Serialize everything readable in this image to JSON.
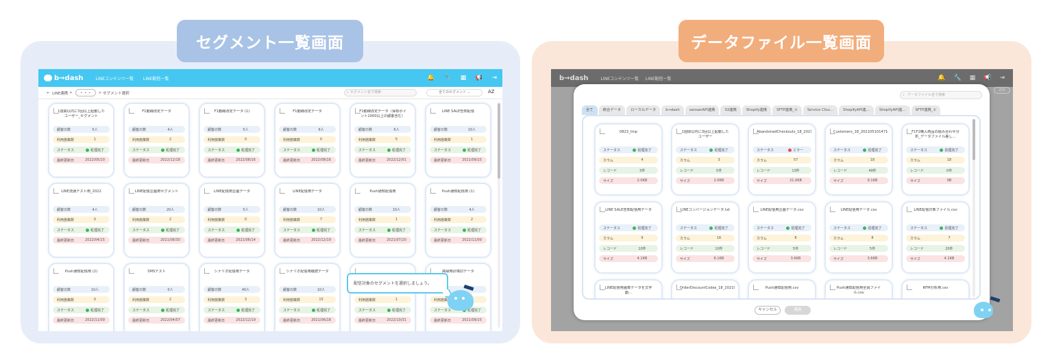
{
  "titles": {
    "left": "セグメント一覧画面",
    "right": "データファイル一覧画面"
  },
  "app": {
    "logo": "b→dash",
    "nav": [
      "LINEコンテンツ一覧",
      "LINE配信一覧"
    ]
  },
  "left": {
    "breadcrumb": {
      "root": "LINE連携",
      "ellipsis": "・・・",
      "current": "セグメント選択"
    },
    "search_placeholder": "セグメント名で検索",
    "filter": "全てのセグメント",
    "sort": "AZ",
    "labels": {
      "count": "顧客の数",
      "usage": "利用施策数",
      "status": "ステータス",
      "updated": "最終更新日"
    },
    "status_done": "処理完了",
    "cards": [
      {
        "name": "1週間以内に3回以上起動したユーザー_セグメント",
        "count": "5人",
        "usage": "1",
        "date": "2022/05/10"
      },
      {
        "name": "F1動線改定データ",
        "count": "4人",
        "usage": "2",
        "date": "2022/12/18"
      },
      {
        "name": "F1動線改定データ (1)",
        "count": "5人",
        "usage": "0",
        "date": "2022/08/16"
      },
      {
        "name": "F1動線改定データ",
        "count": "9人",
        "usage": "0",
        "date": "2022/08/16"
      },
      {
        "name": "F1動線改定データ（保有ポイント1000以上の顧客含む）",
        "count": "6人",
        "usage": "5",
        "date": "2022/12/01"
      },
      {
        "name": "LINE SALE告知配信",
        "count": "10人",
        "usage": "1",
        "date": "2021/09/15"
      },
      {
        "name": "LINE流通テスト用_2022",
        "count": "4人",
        "usage": "0",
        "date": "2022/04/15"
      },
      {
        "name": "LINE配信企画用セグメント",
        "count": "20人",
        "usage": "2",
        "date": "2021/08/30"
      },
      {
        "name": "LINE配信用企画データ",
        "count": "5人",
        "usage": "0",
        "date": "2021/06/14"
      },
      {
        "name": "LINE配信用データ",
        "count": "10人",
        "usage": "7",
        "date": "2022/12/19"
      },
      {
        "name": "Push通知配信用",
        "count": "10人",
        "usage": "1",
        "date": "2021/07/20"
      },
      {
        "name": "Push通知配信用 (1)",
        "count": "4人",
        "usage": "2",
        "date": "2022/11/09"
      },
      {
        "name": "Push通知配信用 (2)",
        "count": "10人",
        "usage": "0",
        "date": "2022/11/09"
      },
      {
        "name": "SMSテスト",
        "count": "0人",
        "usage": "2",
        "date": "2022/04/07"
      },
      {
        "name": "シナリオ配信用データ",
        "count": "40人",
        "usage": "3",
        "date": "2022/12/19"
      },
      {
        "name": "シナリオ配信用継続データ",
        "count": "10人",
        "usage": "15",
        "date": "2021/06/18"
      },
      {
        "name": "",
        "count": "",
        "usage": "1",
        "date": "2022/10/31"
      },
      {
        "name": "高級時計検討データ",
        "count": "",
        "usage": "1",
        "date": "2021/09/15"
      }
    ],
    "bubble": "配信対象のセグメントを選択しましょう。"
  },
  "right": {
    "search_placeholder": "データファイル名で検索",
    "bg_button": "適用",
    "tabs": [
      "全て",
      "統合データ",
      "ローカルデータ",
      "b→dash",
      "sansanAPI連携",
      "S3連携",
      "Shopify連携",
      "SFTP連携_①",
      "Service Clou…",
      "ShopifyAPI連…",
      "ShopifyAPI連…",
      "SFTP連携_①"
    ],
    "labels": {
      "status": "ステータス",
      "column": "カラム",
      "record": "レコード",
      "size": "サイズ"
    },
    "status_done": "処理完了",
    "status_error": "エラー",
    "files": [
      {
        "name": "0823_tmp",
        "status": "ok",
        "col": "4",
        "rec": "3件",
        "size": "2.0KB"
      },
      {
        "name": "1週間以内に3回以上起動したユーザー",
        "status": "ok",
        "col": "3",
        "rec": "5件",
        "size": "2.0KB"
      },
      {
        "name": "AbandonedCheckouts_18_20210511014714.csv",
        "status": "err",
        "col": "57",
        "rec": "13件",
        "size": "21.0KB"
      },
      {
        "name": "Customers_18_2021051014714.csv",
        "status": "ok",
        "col": "18",
        "rec": "49件",
        "size": "9.1KB"
      },
      {
        "name": "F1F2購入商品の組み合わせ分析_データファイル差し…",
        "status": "ok",
        "col": "18",
        "rec": "0件",
        "size": "0B"
      },
      {
        "name": "LINE SALE告知配信用データ",
        "status": "ok",
        "col": "9",
        "rec": "10件",
        "size": "4.1KB"
      },
      {
        "name": "LINEコンバージョンデータ.txt",
        "status": "ok",
        "col": "16",
        "rec": "10件",
        "size": "6.1KB"
      },
      {
        "name": "LINE配信用企画データ.csv",
        "status": "ok",
        "col": "8",
        "rec": "5件",
        "size": "3.6KB"
      },
      {
        "name": "LINE配信用データ.csv",
        "status": "ok",
        "col": "8",
        "rec": "5件",
        "size": "3.6KB"
      },
      {
        "name": "LINE配信対象ファイル.csv",
        "status": "ok",
        "col": "7",
        "rec": "20件",
        "size": "4.1KB"
      },
      {
        "name": "LINE配信用画像データを文字面…",
        "status": "ok",
        "col": "",
        "rec": "",
        "size": ""
      },
      {
        "name": "OrderDiscountCodes_18_20210511014747.csv",
        "status": "ok",
        "col": "",
        "rec": "",
        "size": ""
      },
      {
        "name": "Push通知配信用.csv",
        "status": "ok",
        "col": "",
        "rec": "",
        "size": ""
      },
      {
        "name": "Push通知配信用全員ファイル.csv",
        "status": "ok",
        "col": "",
        "rec": "",
        "size": ""
      },
      {
        "name": "RFM分析用.csv",
        "status": "ok",
        "col": "",
        "rec": "",
        "size": ""
      }
    ],
    "buttons": {
      "cancel": "キャンセル",
      "apply": "適用"
    }
  }
}
